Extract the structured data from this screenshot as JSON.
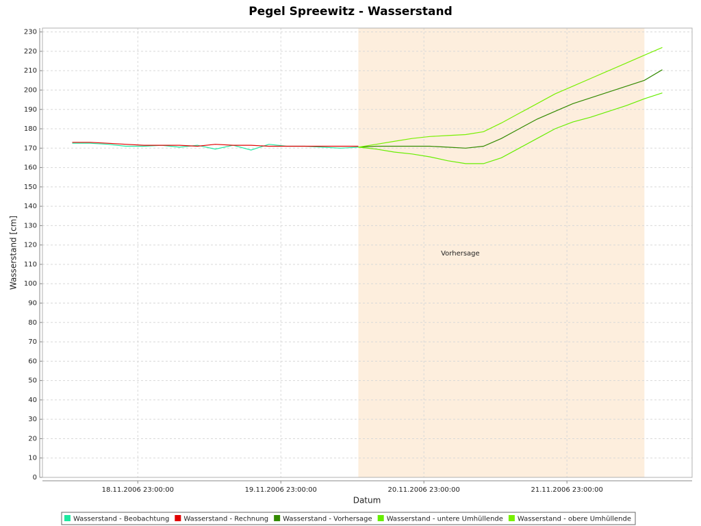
{
  "chart_data": {
    "type": "line",
    "title": "Pegel Spreewitz - Wasserstand",
    "x_label": "Datum",
    "y_label": "Wasserstand [cm]",
    "x": [
      "2006-11-18T12:00",
      "2006-11-18T15:00",
      "2006-11-18T18:00",
      "2006-11-18T21:00",
      "2006-11-19T00:00",
      "2006-11-19T03:00",
      "2006-11-19T06:00",
      "2006-11-19T09:00",
      "2006-11-19T12:00",
      "2006-11-19T15:00",
      "2006-11-19T18:00",
      "2006-11-19T21:00",
      "2006-11-20T00:00",
      "2006-11-20T03:00",
      "2006-11-20T06:00",
      "2006-11-20T09:00",
      "2006-11-20T12:00",
      "2006-11-20T15:00",
      "2006-11-20T18:00",
      "2006-11-20T21:00",
      "2006-11-21T00:00",
      "2006-11-21T03:00",
      "2006-11-21T06:00",
      "2006-11-21T09:00",
      "2006-11-21T12:00",
      "2006-11-21T15:00",
      "2006-11-21T18:00",
      "2006-11-21T21:00",
      "2006-11-22T00:00",
      "2006-11-22T03:00",
      "2006-11-22T06:00",
      "2006-11-22T09:00",
      "2006-11-22T12:00",
      "2006-11-22T15:00"
    ],
    "series": [
      {
        "name": "Wasserstand - Beobachtung",
        "color": "#1ee8a0",
        "values": [
          172.5,
          172.5,
          172,
          171,
          171,
          171.5,
          170.5,
          171.5,
          169.5,
          171.5,
          169,
          172,
          171,
          171,
          170.5,
          170,
          170.5,
          null,
          null,
          null,
          null,
          null,
          null,
          null,
          null,
          null,
          null,
          null,
          null,
          null,
          null,
          null,
          null,
          null
        ]
      },
      {
        "name": "Wasserstand - Rechnung",
        "color": "#e00000",
        "values": [
          173,
          173,
          172.5,
          172,
          171.5,
          171.5,
          171.5,
          171,
          172,
          171.5,
          171.5,
          171,
          171,
          171,
          171,
          171,
          171,
          null,
          null,
          null,
          null,
          null,
          null,
          null,
          null,
          null,
          null,
          null,
          null,
          null,
          null,
          null,
          null,
          null
        ]
      },
      {
        "name": "Wasserstand - Vorhersage",
        "color": "#338a00",
        "values": [
          null,
          null,
          null,
          null,
          null,
          null,
          null,
          null,
          null,
          null,
          null,
          null,
          null,
          null,
          null,
          null,
          170.5,
          171,
          171,
          171,
          171,
          170.5,
          170,
          171,
          175,
          180,
          185,
          189,
          193,
          196,
          199,
          202,
          205,
          210.5
        ]
      },
      {
        "name": "Wasserstand - untere Umhüllende",
        "color": "#66ee00",
        "values": [
          null,
          null,
          null,
          null,
          null,
          null,
          null,
          null,
          null,
          null,
          null,
          null,
          null,
          null,
          null,
          null,
          170.5,
          169.5,
          168,
          167,
          165.5,
          163.5,
          162,
          162,
          165,
          170,
          175,
          180,
          183.5,
          186,
          189,
          192,
          195.5,
          198.5
        ]
      },
      {
        "name": "Wasserstand - obere Umhüllende",
        "color": "#77f000",
        "values": [
          null,
          null,
          null,
          null,
          null,
          null,
          null,
          null,
          null,
          null,
          null,
          null,
          null,
          null,
          null,
          null,
          170.5,
          172,
          173.5,
          175,
          176,
          176.5,
          177,
          178.5,
          183,
          188,
          193,
          198,
          202,
          206,
          210,
          214,
          218,
          222
        ]
      }
    ],
    "regions": [
      {
        "from": "2006-11-20T12:00",
        "to": "2006-11-22T12:00",
        "label": "Vorhersage",
        "color": "#fdeedd"
      }
    ],
    "xlim": [
      "2006-11-18T07:00",
      "2006-11-22T20:00"
    ],
    "xticks": [
      {
        "value": "2006-11-18T23:00",
        "label": "18.11.2006 23:00:00"
      },
      {
        "value": "2006-11-19T23:00",
        "label": "19.11.2006 23:00:00"
      },
      {
        "value": "2006-11-20T23:00",
        "label": "20.11.2006 23:00:00"
      },
      {
        "value": "2006-11-21T23:00",
        "label": "21.11.2006 23:00:00"
      }
    ],
    "ylim": [
      0,
      232
    ],
    "yticks": [
      0,
      10,
      20,
      30,
      40,
      50,
      60,
      70,
      80,
      90,
      100,
      110,
      120,
      130,
      140,
      150,
      160,
      170,
      180,
      190,
      200,
      210,
      220,
      230
    ],
    "grid": true,
    "legend": "bottom"
  }
}
